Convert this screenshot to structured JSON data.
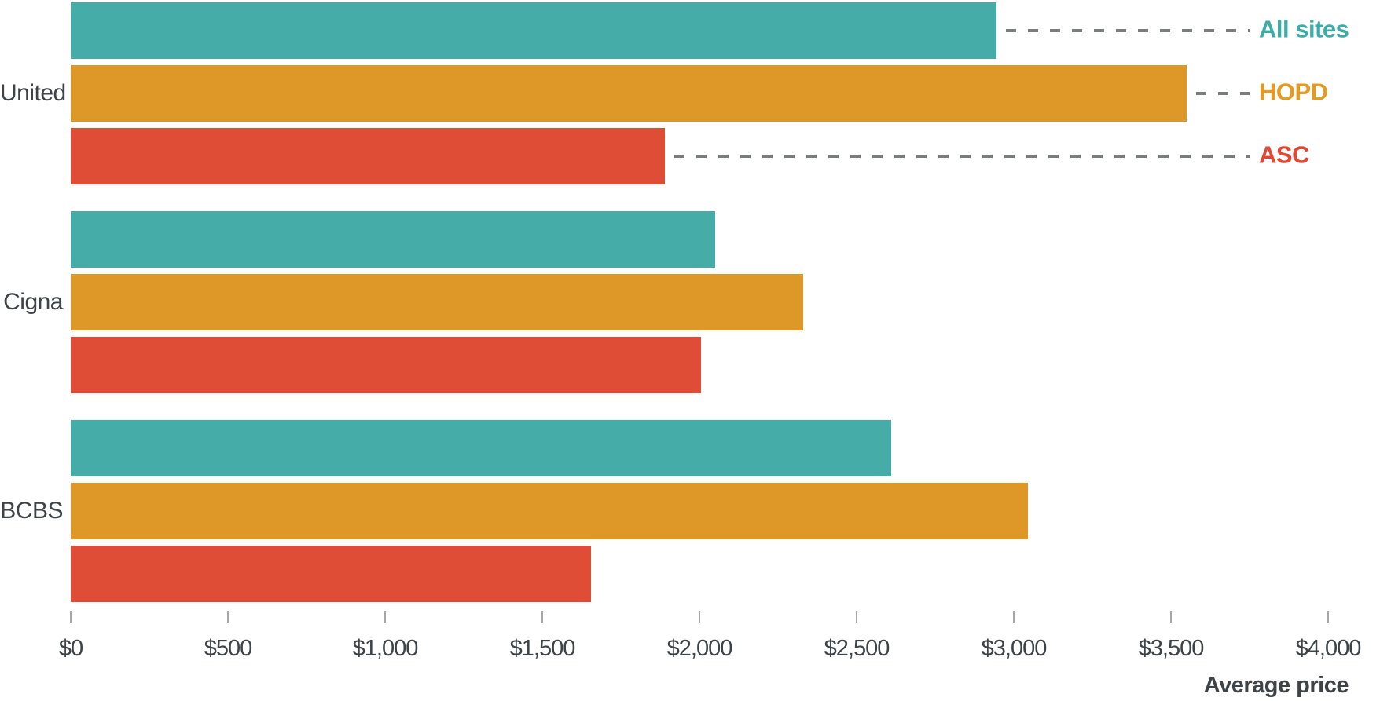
{
  "chart_data": {
    "type": "bar",
    "orientation": "horizontal-grouped",
    "title": "",
    "categories": [
      "United",
      "Cigna",
      "BCBS"
    ],
    "series": [
      {
        "name": "All sites",
        "color": "#45aca8",
        "label_color": "#3baca6",
        "values": [
          2945,
          2050,
          2610
        ]
      },
      {
        "name": "HOPD",
        "color": "#de9827",
        "label_color": "#e49b24",
        "values": [
          3550,
          2330,
          3045
        ]
      },
      {
        "name": "ASC",
        "color": "#e04d37",
        "label_color": "#e24731",
        "values": [
          1890,
          2005,
          1655
        ]
      }
    ],
    "xlabel": "Average price",
    "xlim": [
      0,
      4000
    ],
    "xticks": [
      0,
      500,
      1000,
      1500,
      2000,
      2500,
      3000,
      3500,
      4000
    ],
    "xtick_labels": [
      "$0",
      "$500",
      "$1,000",
      "$1,500",
      "$2,000",
      "$2,500",
      "$3,000",
      "$3,500",
      "$4,000"
    ],
    "legend": {
      "entries": [
        "All sites",
        "HOPD",
        "ASC"
      ],
      "position": "right, attached to first group bars with dashed leader lines"
    },
    "grid": false
  }
}
